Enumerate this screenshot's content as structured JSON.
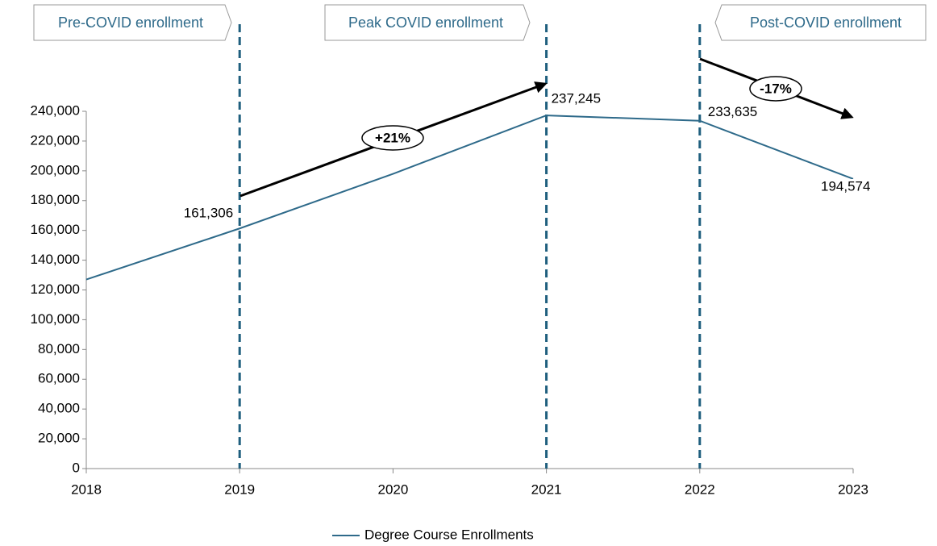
{
  "chart_data": {
    "type": "line",
    "categories": [
      "2018",
      "2019",
      "2020",
      "2021",
      "2022",
      "2023"
    ],
    "series": [
      {
        "name": "Degree Course Enrollments",
        "color": "#2e6a8a",
        "values": [
          127000,
          161306,
          198000,
          237245,
          233635,
          194574
        ],
        "value_labels": [
          null,
          "161,306",
          null,
          "237,245",
          "233,635",
          "194,574"
        ]
      }
    ],
    "ylim": [
      0,
      240000
    ],
    "yticks": [
      0,
      {
        "value": 20000,
        "label": "20,000"
      },
      {
        "value": 40000,
        "label": "40,000"
      },
      {
        "value": 60000,
        "label": "60,000"
      },
      {
        "value": 80000,
        "label": "80,000"
      },
      {
        "value": 100000,
        "label": "100,000"
      },
      {
        "value": 120000,
        "label": "120,000"
      },
      {
        "value": 140000,
        "label": "140,000"
      },
      {
        "value": 160000,
        "label": "160,000"
      },
      {
        "value": 180000,
        "label": "180,000"
      },
      {
        "value": 200000,
        "label": "200,000"
      },
      {
        "value": 220000,
        "label": "220,000"
      },
      {
        "value": 240000,
        "label": "240,000"
      }
    ],
    "grid": false,
    "legend": "bottom",
    "annotations": [
      "Pre-COVID enrollment",
      "Peak COVID enrollment",
      "Post-COVID enrollment",
      "+21%",
      "-17%"
    ]
  }
}
